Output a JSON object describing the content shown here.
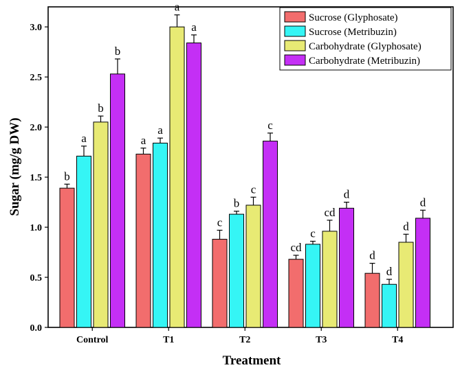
{
  "chart_data": {
    "type": "bar",
    "xlabel": "Treatment",
    "ylabel": "Sugar (mg/g DW)",
    "ylim": [
      0,
      3.2
    ],
    "yticks": [
      "0.0",
      "0.5",
      "1.0",
      "1.5",
      "2.0",
      "2.5",
      "3.0"
    ],
    "categories": [
      "Control",
      "T1",
      "T2",
      "T3",
      "T4"
    ],
    "series": [
      {
        "name": "Sucrose (Glyphosate)",
        "color": "#f26d6d",
        "values": [
          1.39,
          1.73,
          0.88,
          0.68,
          0.54
        ],
        "errors": [
          0.04,
          0.06,
          0.09,
          0.04,
          0.1
        ],
        "letters": [
          "b",
          "a",
          "c",
          "cd",
          "d"
        ]
      },
      {
        "name": "Sucrose (Metribuzin)",
        "color": "#35f5f5",
        "values": [
          1.71,
          1.84,
          1.13,
          0.83,
          0.43
        ],
        "errors": [
          0.1,
          0.05,
          0.03,
          0.03,
          0.05
        ],
        "letters": [
          "a",
          "a",
          "b",
          "c",
          "d"
        ]
      },
      {
        "name": "Carbohydrate (Glyphosate)",
        "color": "#e8ea74",
        "values": [
          2.05,
          3.0,
          1.22,
          0.96,
          0.85
        ],
        "errors": [
          0.06,
          0.12,
          0.08,
          0.11,
          0.08
        ],
        "letters": [
          "b",
          "a",
          "c",
          "cd",
          "d"
        ]
      },
      {
        "name": "Carbohydrate (Metribuzin)",
        "color": "#c42ff5",
        "values": [
          2.53,
          2.84,
          1.86,
          1.19,
          1.09
        ],
        "errors": [
          0.15,
          0.08,
          0.08,
          0.06,
          0.08
        ],
        "letters": [
          "b",
          "a",
          "c",
          "d",
          "d"
        ]
      }
    ],
    "legend_position": "top-right",
    "grid": false
  }
}
